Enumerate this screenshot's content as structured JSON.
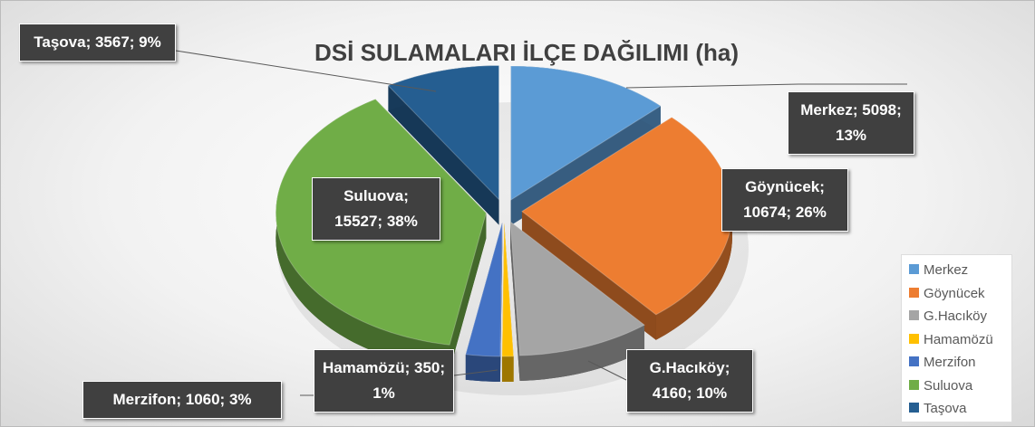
{
  "chart_data": {
    "type": "pie3d",
    "title": "DSİ SULAMALARI İLÇE DAĞILIMI (ha)",
    "categories": [
      "Merkez",
      "Göynücek",
      "G.Hacıköy",
      "Hamamözü",
      "Merzifon",
      "Suluova",
      "Taşova"
    ],
    "values": [
      5098,
      10674,
      4160,
      350,
      1060,
      15527,
      3567
    ],
    "value_labels": [
      "Merkez; 5098; 13%",
      "Göynücek; 10674; 26%",
      "G.Hacıköy; 4160; 10%",
      "Hamamözü; 350; 1%",
      "Merzifon; 1060; 3%",
      "Suluova; 15527; 38%",
      "Taşova; 3567; 9%"
    ],
    "colors": [
      "#5b9bd5",
      "#ed7d31",
      "#a5a5a5",
      "#ffc000",
      "#4472c4",
      "#70ad47",
      "#255e91"
    ],
    "legend": "right-bottom"
  }
}
